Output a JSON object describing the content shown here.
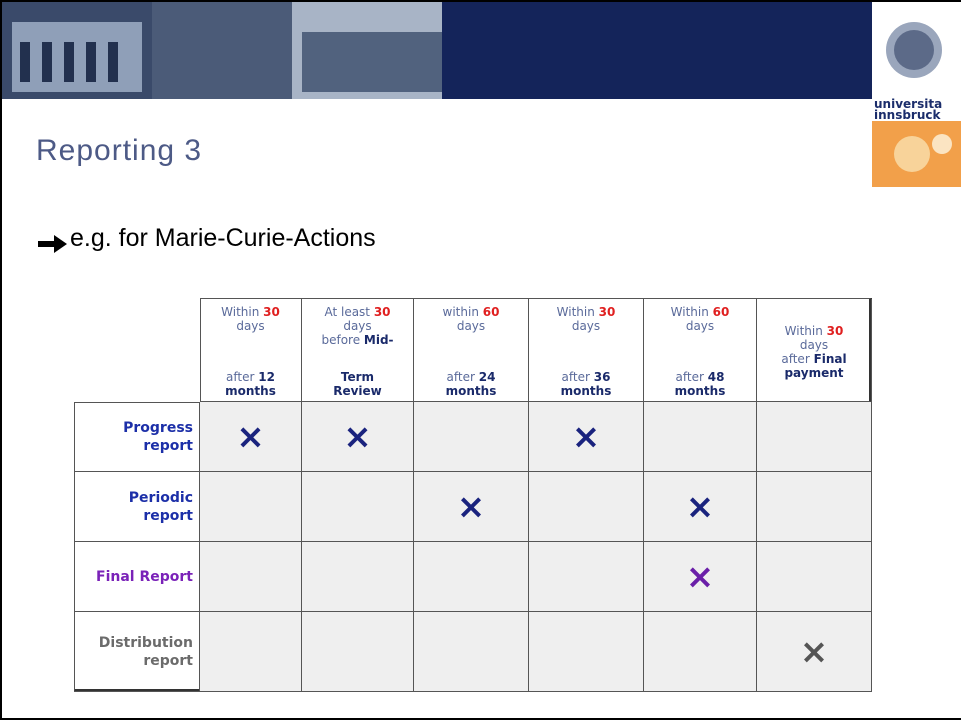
{
  "logo": {
    "lines": [
      "universita",
      "innsbruck"
    ]
  },
  "title": "Reporting 3",
  "subtitle": "e.g. for Marie-Curie-Actions",
  "table": {
    "columns": [
      {
        "upper": [
          [
            {
              "text": "Within ",
              "style": "plain"
            },
            {
              "text": "30",
              "style": "red"
            }
          ],
          [
            {
              "text": "days",
              "style": "plain"
            }
          ]
        ],
        "lower": [
          [
            {
              "text": "after ",
              "style": "plain"
            },
            {
              "text": "12",
              "style": "bold"
            }
          ],
          [
            {
              "text": "months",
              "style": "bold"
            }
          ]
        ]
      },
      {
        "upper": [
          [
            {
              "text": "At least ",
              "style": "plain"
            },
            {
              "text": "30",
              "style": "red"
            }
          ],
          [
            {
              "text": "days",
              "style": "plain"
            }
          ],
          [
            {
              "text": "before ",
              "style": "plain"
            },
            {
              "text": "Mid-",
              "style": "bold"
            }
          ]
        ],
        "lower": [
          [
            {
              "text": "Term",
              "style": "bold"
            }
          ],
          [
            {
              "text": "Review",
              "style": "bold"
            }
          ]
        ]
      },
      {
        "upper": [
          [
            {
              "text": "within ",
              "style": "plain"
            },
            {
              "text": "60",
              "style": "red"
            }
          ],
          [
            {
              "text": "days",
              "style": "plain"
            }
          ]
        ],
        "lower": [
          [
            {
              "text": "after ",
              "style": "plain"
            },
            {
              "text": "24",
              "style": "bold"
            }
          ],
          [
            {
              "text": "months",
              "style": "bold"
            }
          ]
        ]
      },
      {
        "upper": [
          [
            {
              "text": "Within ",
              "style": "plain"
            },
            {
              "text": "30",
              "style": "red"
            }
          ],
          [
            {
              "text": "days",
              "style": "plain"
            }
          ]
        ],
        "lower": [
          [
            {
              "text": "after ",
              "style": "plain"
            },
            {
              "text": "36",
              "style": "bold"
            }
          ],
          [
            {
              "text": "months",
              "style": "bold"
            }
          ]
        ]
      },
      {
        "upper": [
          [
            {
              "text": "Within ",
              "style": "plain"
            },
            {
              "text": "60",
              "style": "red"
            }
          ],
          [
            {
              "text": "days",
              "style": "plain"
            }
          ]
        ],
        "lower": [
          [
            {
              "text": "after ",
              "style": "plain"
            },
            {
              "text": "48",
              "style": "bold"
            }
          ],
          [
            {
              "text": "months",
              "style": "bold"
            }
          ]
        ]
      },
      {
        "upper": [
          [
            {
              "text": "Within ",
              "style": "plain"
            },
            {
              "text": "30",
              "style": "red"
            }
          ],
          [
            {
              "text": "days",
              "style": "plain"
            }
          ],
          [
            {
              "text": "after ",
              "style": "plain"
            },
            {
              "text": "Final",
              "style": "bold"
            }
          ],
          [
            {
              "text": "payment",
              "style": "bold"
            }
          ]
        ]
      }
    ],
    "rows": [
      {
        "label": [
          "Progress",
          "report"
        ],
        "color": "#1c2fa8",
        "mark_color": "#1a237e",
        "cells": [
          "×",
          "×",
          null,
          "×",
          null,
          null
        ]
      },
      {
        "label": [
          "Periodic",
          "report"
        ],
        "color": "#1c2fa8",
        "mark_color": "#1a237e",
        "cells": [
          null,
          null,
          "×",
          null,
          "×",
          null
        ]
      },
      {
        "label": [
          "Final Report"
        ],
        "color": "#7a22b8",
        "mark_color": "#6a1fa8",
        "cells": [
          null,
          null,
          null,
          null,
          "×",
          null
        ]
      },
      {
        "label": [
          "Distribution",
          "report"
        ],
        "color": "#6b6b6b",
        "mark_color": "#555555",
        "cells": [
          null,
          null,
          null,
          null,
          null,
          "×"
        ]
      }
    ]
  }
}
